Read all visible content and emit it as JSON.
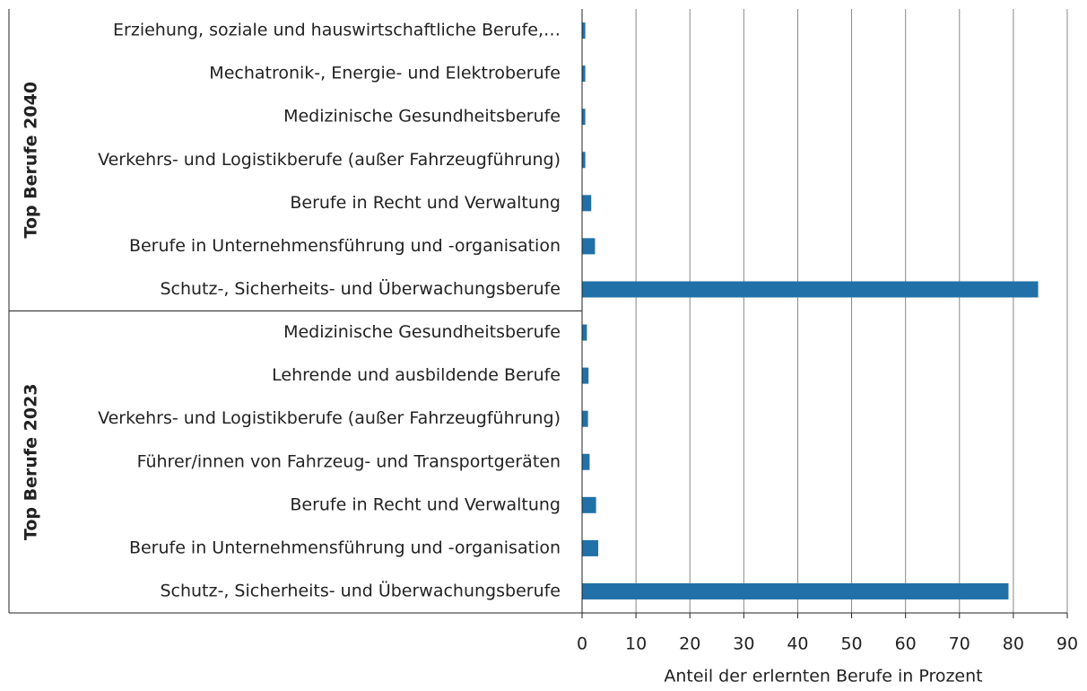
{
  "chart_data": {
    "type": "bar",
    "orientation": "horizontal",
    "x_label": "Anteil der erlernten Berufe in Prozent",
    "color": "#2171a8",
    "xlim": [
      0,
      90
    ],
    "xticks": [
      0,
      10,
      20,
      30,
      40,
      50,
      60,
      70,
      80,
      90
    ],
    "grid": true,
    "groups": [
      {
        "name": "Top Berufe 2040",
        "categories": [
          "Erziehung, soziale und hauswirtschaftliche Berufe,…",
          "Mechatronik-, Energie- und Elektroberufe",
          "Medizinische Gesundheitsberufe",
          "Verkehrs- und Logistikberufe (außer Fahrzeugführung)",
          "Berufe in Recht und Verwaltung",
          "Berufe in Unternehmensführung und -organisation",
          "Schutz-, Sicherheits- und Überwachungsberufe"
        ],
        "values": [
          0.6,
          0.6,
          0.6,
          0.6,
          1.7,
          2.4,
          84.6
        ]
      },
      {
        "name": "Top Berufe 2023",
        "categories": [
          "Medizinische Gesundheitsberufe",
          "Lehrende und ausbildende Berufe",
          "Verkehrs- und Logistikberufe (außer Fahrzeugführung)",
          "Führer/innen von Fahrzeug- und Transportgeräten",
          "Berufe in Recht und Verwaltung",
          "Berufe in Unternehmensführung und -organisation",
          "Schutz-, Sicherheits- und Überwachungsberufe"
        ],
        "values": [
          0.9,
          1.2,
          1.1,
          1.4,
          2.6,
          3.0,
          79.1
        ]
      }
    ]
  }
}
